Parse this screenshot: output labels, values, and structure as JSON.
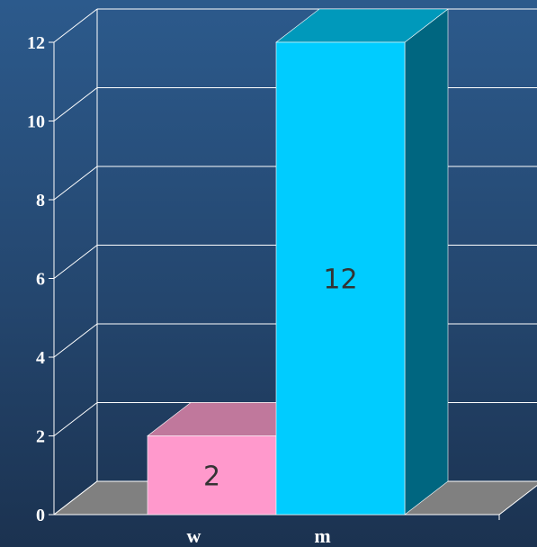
{
  "chart_data": {
    "type": "bar",
    "categories": [
      "w",
      "m"
    ],
    "values": [
      2,
      12
    ],
    "data_labels": [
      "2",
      "12"
    ],
    "y_ticks": [
      "0",
      "2",
      "4",
      "6",
      "8",
      "10",
      "12"
    ],
    "ylim": [
      0,
      12
    ],
    "grid": true,
    "three_d": true,
    "colors": {
      "w": {
        "front": "#ff99cc",
        "top": "#c0789c",
        "side": "#99587a"
      },
      "m": {
        "front": "#00ccff",
        "top": "#0099bb",
        "side": "#006680"
      },
      "floor": "#808080",
      "grid": "#ffffff"
    }
  }
}
